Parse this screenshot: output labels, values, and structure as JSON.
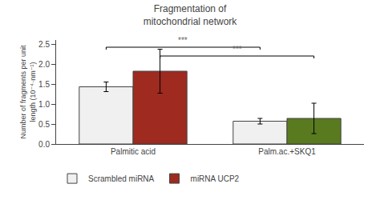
{
  "chart_data": {
    "type": "bar",
    "title": "Fragmentation of\nmitochondrial network",
    "ylabel": "Number of fragments per unit\nlength (10⁻⁴·nm⁻¹)",
    "categories": [
      "Palmitic acid",
      "Palm.ac.+SKQ1"
    ],
    "series": [
      {
        "name": "Scrambled miRNA",
        "color": "#f0f0f0",
        "values": [
          1.43,
          0.57
        ],
        "errors": [
          0.12,
          0.07
        ]
      },
      {
        "name": "miRNA UCP2",
        "colors": [
          "#9e2a20",
          "#5a7a20"
        ],
        "values": [
          1.82,
          0.64
        ],
        "errors": [
          0.55,
          0.38
        ]
      }
    ],
    "ylim": [
      0,
      2.6
    ],
    "yticks": [
      {
        "value": 0,
        "label": "0.0"
      },
      0.5,
      {
        "value": 1.0,
        "label": "1.0"
      },
      1.5,
      {
        "value": 2.0,
        "label": "2.0"
      },
      2.5
    ],
    "grid": false,
    "legend": "bottom",
    "annotations": [
      {
        "text": "***",
        "series": "Scrambled miRNA",
        "from": "Palmitic acid",
        "to": "Palm.ac.+SKQ1",
        "y": 2.42
      },
      {
        "text": "***",
        "series": "miRNA UCP2",
        "from": "Palmitic acid",
        "to": "Palm.ac.+SKQ1",
        "y": 2.2
      }
    ]
  }
}
